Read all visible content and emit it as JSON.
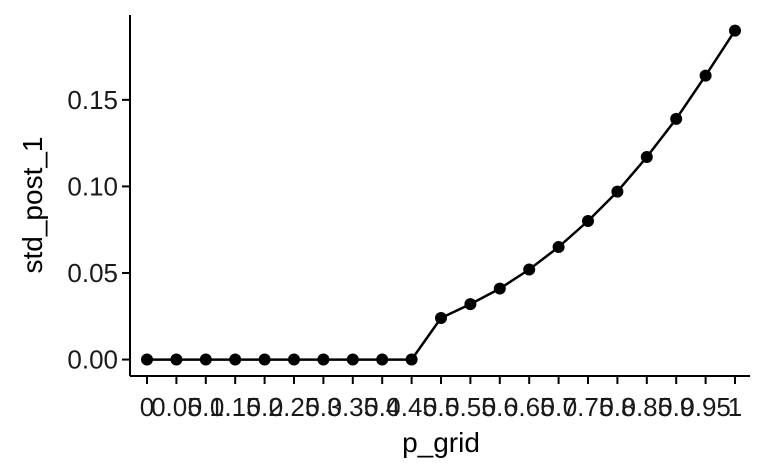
{
  "chart_data": {
    "type": "line",
    "title": "",
    "xlabel": "p_grid",
    "ylabel": "std_post_1",
    "x": [
      0,
      0.05,
      0.1,
      0.15,
      0.2,
      0.25,
      0.3,
      0.35,
      0.4,
      0.45,
      0.5,
      0.55,
      0.6,
      0.65,
      0.7,
      0.75,
      0.8,
      0.85,
      0.9,
      0.95,
      1
    ],
    "x_tick_labels": [
      "0",
      "0.05",
      "0.1",
      "0.15",
      "0.2",
      "0.25",
      "0.3",
      "0.35",
      "0.4",
      "0.45",
      "0.5",
      "0.55",
      "0.6",
      "0.65",
      "0.7",
      "0.75",
      "0.8",
      "0.85",
      "0.9",
      "0.95",
      "1"
    ],
    "series": [
      {
        "values": [
          0,
          0,
          0,
          0,
          0,
          0,
          0,
          0,
          0,
          0,
          0.024,
          0.032,
          0.041,
          0.052,
          0.065,
          0.08,
          0.097,
          0.117,
          0.139,
          0.164,
          0.19
        ]
      }
    ],
    "y_ticks": [
      0.0,
      0.05,
      0.1,
      0.15
    ],
    "y_tick_labels": [
      "0.00",
      "0.05",
      "0.10",
      "0.15"
    ],
    "ylim": [
      -0.0095,
      0.199
    ],
    "grid": false,
    "markers": true,
    "line_color": "#000000"
  }
}
